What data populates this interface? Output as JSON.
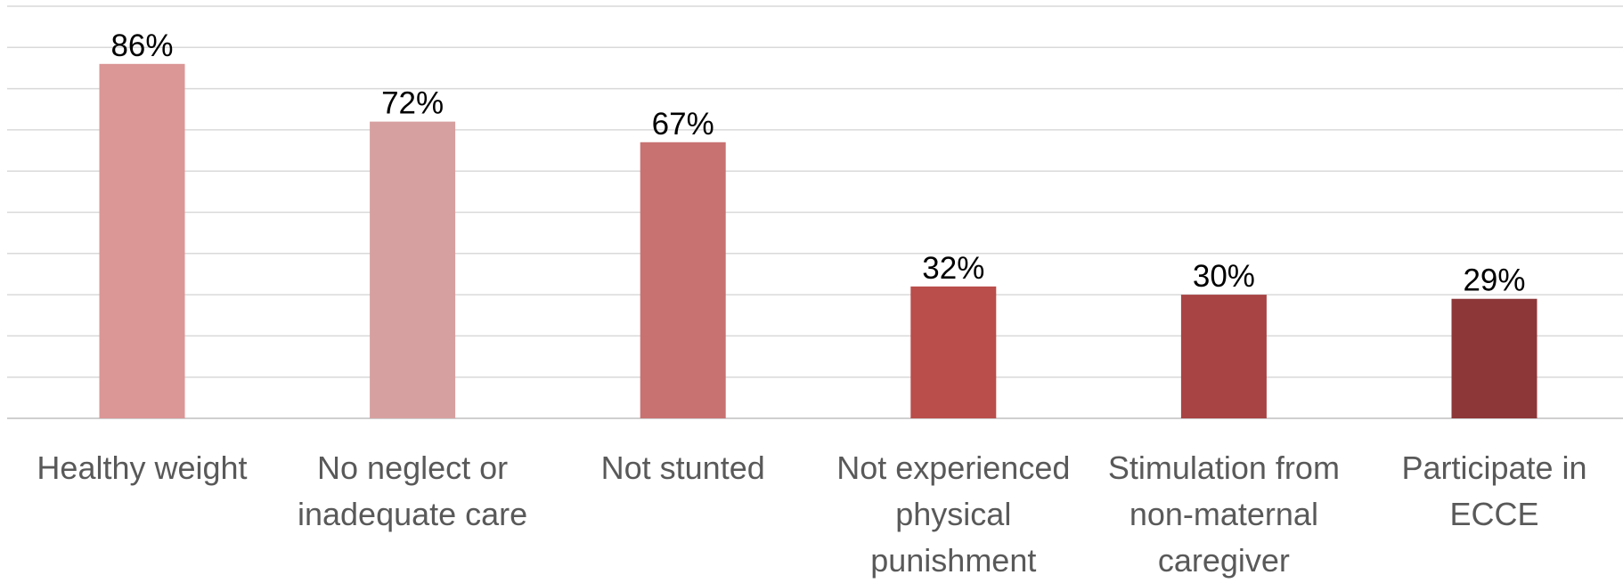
{
  "chart_data": {
    "type": "bar",
    "categories": [
      [
        "Healthy weight"
      ],
      [
        "No neglect or",
        "inadequate care"
      ],
      [
        "Not stunted"
      ],
      [
        "Not experienced",
        "physical",
        "punishment"
      ],
      [
        "Stimulation from",
        "non-maternal",
        "caregiver"
      ],
      [
        "Participate in",
        "ECCE"
      ]
    ],
    "values": [
      86,
      72,
      67,
      32,
      30,
      29
    ],
    "value_labels": [
      "86%",
      "72%",
      "67%",
      "32%",
      "30%",
      "29%"
    ],
    "colors": [
      "#db9696",
      "#d7a0a0",
      "#c87272",
      "#b94e4b",
      "#a84444",
      "#8d3738"
    ],
    "ylim": [
      0,
      100
    ],
    "grid_step": 10,
    "grid": true,
    "legend": "none",
    "title": "",
    "xlabel": "",
    "ylabel": ""
  }
}
